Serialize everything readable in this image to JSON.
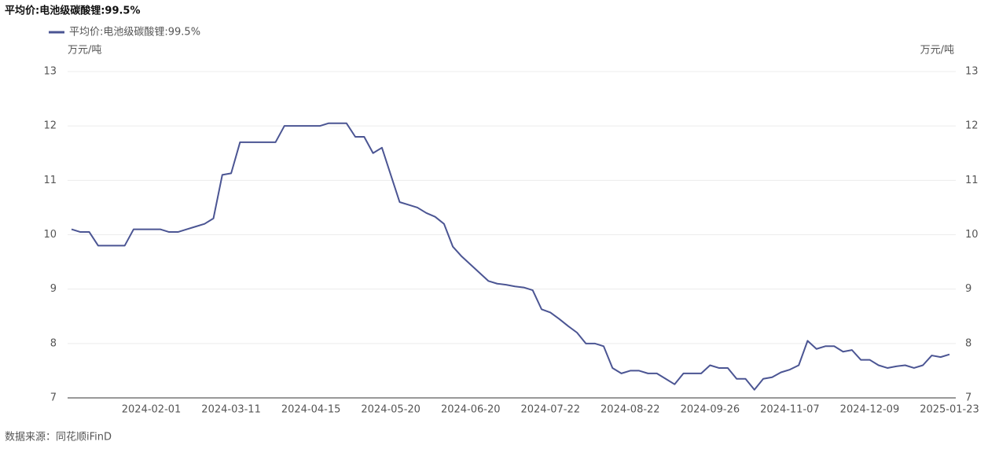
{
  "chart_data": {
    "type": "line",
    "title": "平均价:电池级碳酸锂:99.5%",
    "ylabel": "万元/吨",
    "y2label": "万元/吨",
    "source": "数据来源：同花顺iFinD",
    "categories": [
      null,
      null,
      null,
      null,
      null,
      null,
      null,
      null,
      null,
      "2024-02-01",
      null,
      null,
      null,
      null,
      null,
      null,
      null,
      null,
      "2024-03-11",
      null,
      null,
      null,
      null,
      null,
      null,
      null,
      null,
      "2024-04-15",
      null,
      null,
      null,
      null,
      null,
      null,
      null,
      null,
      "2024-05-20",
      null,
      null,
      null,
      null,
      null,
      null,
      null,
      null,
      "2024-06-20",
      null,
      null,
      null,
      null,
      null,
      null,
      null,
      null,
      "2024-07-22",
      null,
      null,
      null,
      null,
      null,
      null,
      null,
      null,
      "2024-08-22",
      null,
      null,
      null,
      null,
      null,
      null,
      null,
      null,
      "2024-09-26",
      null,
      null,
      null,
      null,
      null,
      null,
      null,
      null,
      "2024-11-07",
      null,
      null,
      null,
      null,
      null,
      null,
      null,
      null,
      "2024-12-09",
      null,
      null,
      null,
      null,
      null,
      null,
      null,
      null,
      "2025-01-23"
    ],
    "series": [
      {
        "name": "平均价:电池级碳酸锂:99.5%",
        "color": "#4b5593",
        "values": [
          10.1,
          10.05,
          10.05,
          9.8,
          9.8,
          9.8,
          9.8,
          10.1,
          10.1,
          10.1,
          10.1,
          10.05,
          10.05,
          10.1,
          10.15,
          10.2,
          10.3,
          11.1,
          11.13,
          11.7,
          11.7,
          11.7,
          11.7,
          11.7,
          12.0,
          12.0,
          12.0,
          12.0,
          12.0,
          12.05,
          12.05,
          12.05,
          11.8,
          11.8,
          11.5,
          11.6,
          11.1,
          10.6,
          10.55,
          10.5,
          10.4,
          10.33,
          10.2,
          9.78,
          9.6,
          9.45,
          9.3,
          9.15,
          9.1,
          9.08,
          9.05,
          9.03,
          8.98,
          8.63,
          8.57,
          8.45,
          8.32,
          8.2,
          8.0,
          8.0,
          7.95,
          7.55,
          7.45,
          7.5,
          7.5,
          7.45,
          7.45,
          7.35,
          7.25,
          7.45,
          7.45,
          7.45,
          7.6,
          7.55,
          7.55,
          7.35,
          7.35,
          7.15,
          7.35,
          7.38,
          7.47,
          7.52,
          7.6,
          8.05,
          7.9,
          7.95,
          7.95,
          7.85,
          7.88,
          7.7,
          7.7,
          7.6,
          7.55,
          7.58,
          7.6,
          7.55,
          7.6,
          7.78,
          7.75,
          7.8
        ]
      }
    ],
    "ylim": [
      7,
      13
    ],
    "yticks": [
      7,
      8,
      9,
      10,
      11,
      12,
      13
    ],
    "y2lim": [
      7,
      13
    ],
    "y2ticks": [
      7,
      8,
      9,
      10,
      11,
      12,
      13
    ],
    "grid": true
  }
}
